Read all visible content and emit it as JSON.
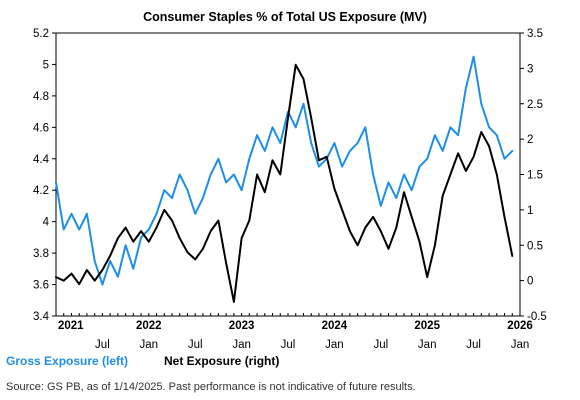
{
  "chart_data": {
    "type": "line",
    "title": "Consumer Staples % of Total US Exposure (MV)",
    "source": "Source: GS PB, as of 1/14/2025. Past performance is not indicative of future results.",
    "left_axis": {
      "ylim": [
        3.4,
        5.2
      ],
      "ticks": [
        "3.4",
        "3.6",
        "3.8",
        "4",
        "4.2",
        "4.4",
        "4.6",
        "4.8",
        "5",
        "5.2"
      ]
    },
    "right_axis": {
      "ylim": [
        -0.5,
        3.5
      ],
      "ticks": [
        "-0.5",
        "0",
        "0.5",
        "1",
        "1.5",
        "2",
        "2.5",
        "3",
        "3.5"
      ]
    },
    "x_axis": {
      "start": "2021-01",
      "end": "2026-01",
      "month_ticks": [
        {
          "date": "2021-07",
          "label": "Jul"
        },
        {
          "date": "2022-01",
          "label": "Jan"
        },
        {
          "date": "2022-07",
          "label": "Jul"
        },
        {
          "date": "2023-01",
          "label": "Jan"
        },
        {
          "date": "2023-07",
          "label": "Jul"
        },
        {
          "date": "2024-01",
          "label": "Jan"
        },
        {
          "date": "2024-07",
          "label": "Jul"
        },
        {
          "date": "2025-01",
          "label": "Jan"
        },
        {
          "date": "2025-07",
          "label": "Jul"
        },
        {
          "date": "2026-01",
          "label": "Jan"
        }
      ],
      "year_labels": [
        {
          "date": "2021-01",
          "label": "2021"
        },
        {
          "date": "2022-01",
          "label": "2022"
        },
        {
          "date": "2023-01",
          "label": "2023"
        },
        {
          "date": "2024-01",
          "label": "2024"
        },
        {
          "date": "2025-01",
          "label": "2025"
        },
        {
          "date": "2026-01",
          "label": "2026"
        }
      ]
    },
    "series": [
      {
        "name": "Gross Exposure (left)",
        "axis": "left",
        "color": "#1f8fe6",
        "points": [
          [
            "2021-01",
            4.25
          ],
          [
            "2021-02",
            3.95
          ],
          [
            "2021-03",
            4.05
          ],
          [
            "2021-04",
            3.95
          ],
          [
            "2021-05",
            4.05
          ],
          [
            "2021-06",
            3.75
          ],
          [
            "2021-07",
            3.6
          ],
          [
            "2021-08",
            3.75
          ],
          [
            "2021-09",
            3.65
          ],
          [
            "2021-10",
            3.85
          ],
          [
            "2021-11",
            3.7
          ],
          [
            "2021-12",
            3.9
          ],
          [
            "2022-01",
            3.95
          ],
          [
            "2022-02",
            4.05
          ],
          [
            "2022-03",
            4.2
          ],
          [
            "2022-04",
            4.15
          ],
          [
            "2022-05",
            4.3
          ],
          [
            "2022-06",
            4.2
          ],
          [
            "2022-07",
            4.05
          ],
          [
            "2022-08",
            4.15
          ],
          [
            "2022-09",
            4.3
          ],
          [
            "2022-10",
            4.4
          ],
          [
            "2022-11",
            4.25
          ],
          [
            "2022-12",
            4.3
          ],
          [
            "2023-01",
            4.2
          ],
          [
            "2023-02",
            4.4
          ],
          [
            "2023-03",
            4.55
          ],
          [
            "2023-04",
            4.45
          ],
          [
            "2023-05",
            4.6
          ],
          [
            "2023-06",
            4.5
          ],
          [
            "2023-07",
            4.7
          ],
          [
            "2023-08",
            4.6
          ],
          [
            "2023-09",
            4.75
          ],
          [
            "2023-10",
            4.5
          ],
          [
            "2023-11",
            4.35
          ],
          [
            "2023-12",
            4.4
          ],
          [
            "2024-01",
            4.5
          ],
          [
            "2024-02",
            4.35
          ],
          [
            "2024-03",
            4.45
          ],
          [
            "2024-04",
            4.5
          ],
          [
            "2024-05",
            4.6
          ],
          [
            "2024-06",
            4.3
          ],
          [
            "2024-07",
            4.1
          ],
          [
            "2024-08",
            4.25
          ],
          [
            "2024-09",
            4.15
          ],
          [
            "2024-10",
            4.3
          ],
          [
            "2024-11",
            4.2
          ],
          [
            "2024-12",
            4.35
          ],
          [
            "2025-01",
            4.4
          ],
          [
            "2025-02",
            4.55
          ],
          [
            "2025-03",
            4.45
          ],
          [
            "2025-04",
            4.6
          ],
          [
            "2025-05",
            4.55
          ],
          [
            "2025-06",
            4.85
          ],
          [
            "2025-07",
            5.05
          ],
          [
            "2025-08",
            4.75
          ],
          [
            "2025-09",
            4.6
          ],
          [
            "2025-10",
            4.55
          ],
          [
            "2025-11",
            4.4
          ],
          [
            "2025-12",
            4.45
          ]
        ]
      },
      {
        "name": "Net Exposure (right)",
        "axis": "right",
        "color": "#000000",
        "points": [
          [
            "2021-01",
            0.05
          ],
          [
            "2021-02",
            0.0
          ],
          [
            "2021-03",
            0.1
          ],
          [
            "2021-04",
            -0.05
          ],
          [
            "2021-05",
            0.15
          ],
          [
            "2021-06",
            0.0
          ],
          [
            "2021-07",
            0.15
          ],
          [
            "2021-08",
            0.35
          ],
          [
            "2021-09",
            0.6
          ],
          [
            "2021-10",
            0.75
          ],
          [
            "2021-11",
            0.55
          ],
          [
            "2021-12",
            0.7
          ],
          [
            "2022-01",
            0.55
          ],
          [
            "2022-02",
            0.75
          ],
          [
            "2022-03",
            1.0
          ],
          [
            "2022-04",
            0.85
          ],
          [
            "2022-05",
            0.6
          ],
          [
            "2022-06",
            0.4
          ],
          [
            "2022-07",
            0.3
          ],
          [
            "2022-08",
            0.45
          ],
          [
            "2022-09",
            0.7
          ],
          [
            "2022-10",
            0.85
          ],
          [
            "2022-11",
            0.25
          ],
          [
            "2022-12",
            -0.3
          ],
          [
            "2023-01",
            0.6
          ],
          [
            "2023-02",
            0.85
          ],
          [
            "2023-03",
            1.5
          ],
          [
            "2023-04",
            1.25
          ],
          [
            "2023-05",
            1.7
          ],
          [
            "2023-06",
            1.5
          ],
          [
            "2023-07",
            2.3
          ],
          [
            "2023-08",
            3.05
          ],
          [
            "2023-09",
            2.85
          ],
          [
            "2023-10",
            2.3
          ],
          [
            "2023-11",
            1.7
          ],
          [
            "2023-12",
            1.75
          ],
          [
            "2024-01",
            1.3
          ],
          [
            "2024-02",
            1.0
          ],
          [
            "2024-03",
            0.7
          ],
          [
            "2024-04",
            0.5
          ],
          [
            "2024-05",
            0.75
          ],
          [
            "2024-06",
            0.9
          ],
          [
            "2024-07",
            0.7
          ],
          [
            "2024-08",
            0.45
          ],
          [
            "2024-09",
            0.75
          ],
          [
            "2024-10",
            1.25
          ],
          [
            "2024-11",
            0.9
          ],
          [
            "2024-12",
            0.55
          ],
          [
            "2025-01",
            0.05
          ],
          [
            "2025-02",
            0.5
          ],
          [
            "2025-03",
            1.2
          ],
          [
            "2025-04",
            1.5
          ],
          [
            "2025-05",
            1.8
          ],
          [
            "2025-06",
            1.55
          ],
          [
            "2025-07",
            1.75
          ],
          [
            "2025-08",
            2.1
          ],
          [
            "2025-09",
            1.9
          ],
          [
            "2025-10",
            1.5
          ],
          [
            "2025-11",
            0.9
          ],
          [
            "2025-12",
            0.35
          ]
        ]
      }
    ]
  }
}
